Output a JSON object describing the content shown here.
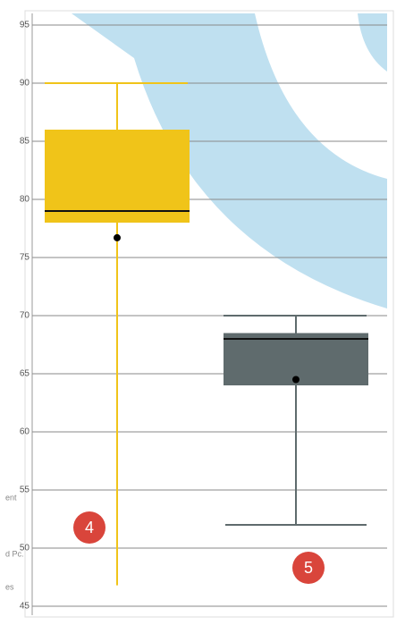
{
  "chart_data": {
    "type": "box",
    "ylim": [
      45,
      95
    ],
    "yticks": [
      45,
      50,
      55,
      60,
      65,
      70,
      75,
      80,
      85,
      90,
      95
    ],
    "grid": true,
    "series": [
      {
        "color": "#f0c419",
        "whisker_high": 90,
        "q3": 86,
        "median": 79,
        "q1": 78,
        "mean": 76.7,
        "whisker_low": 46.8
      },
      {
        "color": "#5f6b6d",
        "whisker_high": 70,
        "q3": 68.5,
        "median": 68,
        "q1": 64,
        "mean": 64.5,
        "whisker_low": 52
      }
    ],
    "badges": [
      "4",
      "5"
    ],
    "cut_labels": [
      "ent",
      "d Pc.",
      "es"
    ]
  }
}
